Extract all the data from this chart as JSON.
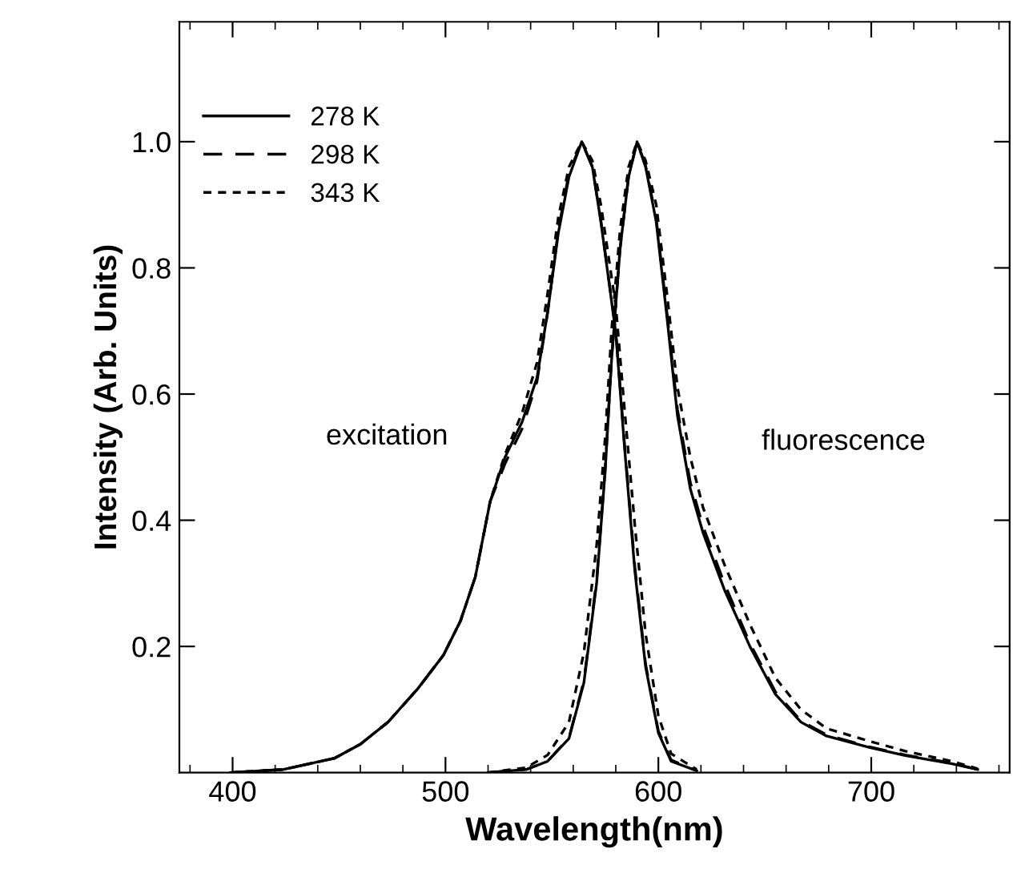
{
  "chart_data": {
    "type": "line",
    "xlabel": "Wavelength(nm)",
    "ylabel": "Intensity (Arb. Units)",
    "xlim": [
      375,
      765
    ],
    "ylim": [
      0,
      1.19
    ],
    "xticks": [
      400,
      500,
      600,
      700
    ],
    "yticks": [
      {
        "value": 0.2,
        "label": "0.2"
      },
      {
        "value": 0.4,
        "label": "0.4"
      },
      {
        "value": 0.6,
        "label": "0.6"
      },
      {
        "value": 0.8,
        "label": "0.8"
      },
      {
        "value": 1.0,
        "label": "1.0"
      }
    ],
    "grid": false,
    "legend": "top left",
    "marker": "none",
    "annotations": [
      "excitation",
      "fluorescence"
    ],
    "series": [
      {
        "name": "278 K",
        "color": "#000000",
        "line_style": "solid",
        "x": [
          399,
          424,
          448,
          460,
          473,
          487,
          499,
          507,
          514,
          521,
          528,
          536,
          543,
          548,
          553,
          558,
          564,
          569,
          573,
          580,
          584,
          589,
          594,
          600,
          606,
          618
        ],
        "values": [
          0,
          0.005,
          0.023,
          0.045,
          0.08,
          0.133,
          0.186,
          0.24,
          0.31,
          0.43,
          0.5,
          0.556,
          0.626,
          0.73,
          0.855,
          0.944,
          1.0,
          0.96,
          0.873,
          0.697,
          0.52,
          0.318,
          0.168,
          0.063,
          0.018,
          0.003
        ]
      },
      {
        "name": "298 K",
        "color": "#000000",
        "line_style": "dashed",
        "x": [
          399,
          424,
          448,
          460,
          473,
          487,
          499,
          507,
          514,
          521,
          528,
          536,
          543,
          548,
          553,
          558,
          564,
          569,
          573,
          580,
          584,
          589,
          594,
          600,
          606,
          618
        ],
        "values": [
          0,
          0.005,
          0.023,
          0.045,
          0.08,
          0.133,
          0.186,
          0.24,
          0.31,
          0.43,
          0.49,
          0.545,
          0.62,
          0.73,
          0.86,
          0.95,
          1.0,
          0.96,
          0.875,
          0.7,
          0.525,
          0.325,
          0.172,
          0.066,
          0.02,
          0.003
        ]
      },
      {
        "name": "343 K",
        "color": "#000000",
        "line_style": "dotted",
        "x": [
          399,
          424,
          448,
          460,
          473,
          487,
          499,
          507,
          514,
          521,
          528,
          536,
          543,
          548,
          553,
          558,
          564,
          569,
          573,
          580,
          584,
          589,
          594,
          600,
          606,
          618
        ],
        "values": [
          0,
          0.005,
          0.023,
          0.045,
          0.08,
          0.133,
          0.186,
          0.24,
          0.31,
          0.43,
          0.505,
          0.57,
          0.65,
          0.76,
          0.88,
          0.96,
          1.0,
          0.97,
          0.9,
          0.74,
          0.58,
          0.39,
          0.22,
          0.09,
          0.03,
          0.005
        ]
      },
      {
        "color": "#000000",
        "line_style": "solid",
        "x": [
          520,
          538,
          548,
          558,
          565,
          571,
          575,
          578,
          582,
          586,
          590,
          594,
          599,
          604,
          609,
          615,
          621,
          631,
          643,
          655,
          667,
          679,
          699,
          716,
          738,
          750
        ],
        "values": [
          0,
          0.005,
          0.018,
          0.054,
          0.142,
          0.3,
          0.477,
          0.653,
          0.83,
          0.944,
          1.0,
          0.96,
          0.873,
          0.723,
          0.565,
          0.45,
          0.38,
          0.29,
          0.2,
          0.124,
          0.08,
          0.058,
          0.04,
          0.027,
          0.014,
          0.005
        ]
      },
      {
        "color": "#000000",
        "line_style": "dashed",
        "x": [
          520,
          538,
          548,
          558,
          565,
          571,
          575,
          578,
          582,
          586,
          590,
          594,
          599,
          604,
          609,
          615,
          621,
          631,
          643,
          655,
          667,
          679,
          699,
          716,
          738,
          750
        ],
        "values": [
          0,
          0.005,
          0.018,
          0.055,
          0.145,
          0.305,
          0.48,
          0.655,
          0.83,
          0.945,
          1.0,
          0.962,
          0.878,
          0.73,
          0.575,
          0.46,
          0.39,
          0.3,
          0.205,
          0.128,
          0.082,
          0.06,
          0.041,
          0.028,
          0.015,
          0.005
        ]
      },
      {
        "color": "#000000",
        "line_style": "dotted",
        "x": [
          520,
          538,
          548,
          558,
          565,
          571,
          575,
          578,
          582,
          586,
          590,
          594,
          599,
          604,
          609,
          615,
          621,
          631,
          643,
          655,
          667,
          679,
          699,
          716,
          738,
          750
        ],
        "values": [
          0,
          0.008,
          0.028,
          0.08,
          0.19,
          0.36,
          0.53,
          0.7,
          0.86,
          0.96,
          1.0,
          0.97,
          0.9,
          0.76,
          0.61,
          0.5,
          0.42,
          0.33,
          0.235,
          0.15,
          0.1,
          0.07,
          0.05,
          0.034,
          0.018,
          0.006
        ]
      }
    ]
  }
}
